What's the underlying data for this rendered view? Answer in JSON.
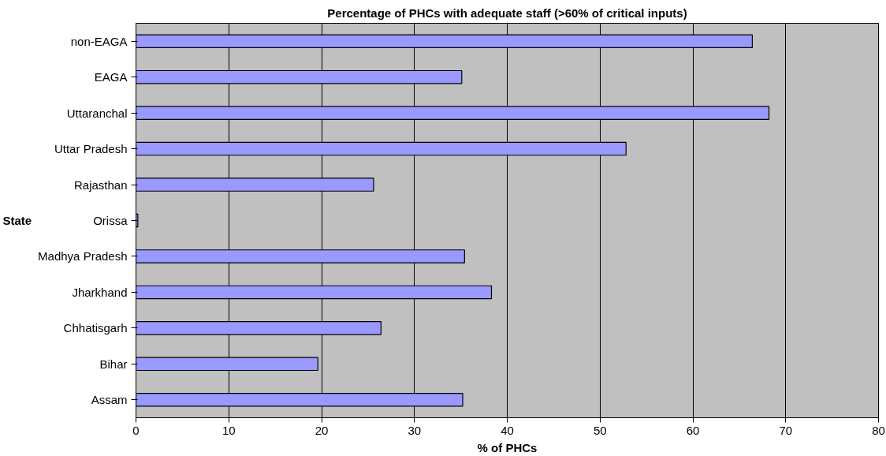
{
  "chart_data": {
    "type": "bar",
    "orientation": "horizontal",
    "title": "Percentage of PHCs with adequate staff (>60% of critical inputs)",
    "xlabel": "% of PHCs",
    "ylabel": "State",
    "categories": [
      "non-EAGA",
      "EAGA",
      "Uttaranchal",
      "Uttar Pradesh",
      "Rajasthan",
      "Orissa",
      "Madhya Pradesh",
      "Jharkhand",
      "Chhatisgarh",
      "Bihar",
      "Assam"
    ],
    "values": [
      66.4,
      35.1,
      68.2,
      52.8,
      25.6,
      0.2,
      35.4,
      38.3,
      26.4,
      19.6,
      35.2
    ],
    "color": "#9999ff",
    "xlim": [
      0,
      80
    ],
    "xticks": [
      0,
      10,
      20,
      30,
      40,
      50,
      60,
      70,
      80
    ],
    "grid": "x"
  }
}
